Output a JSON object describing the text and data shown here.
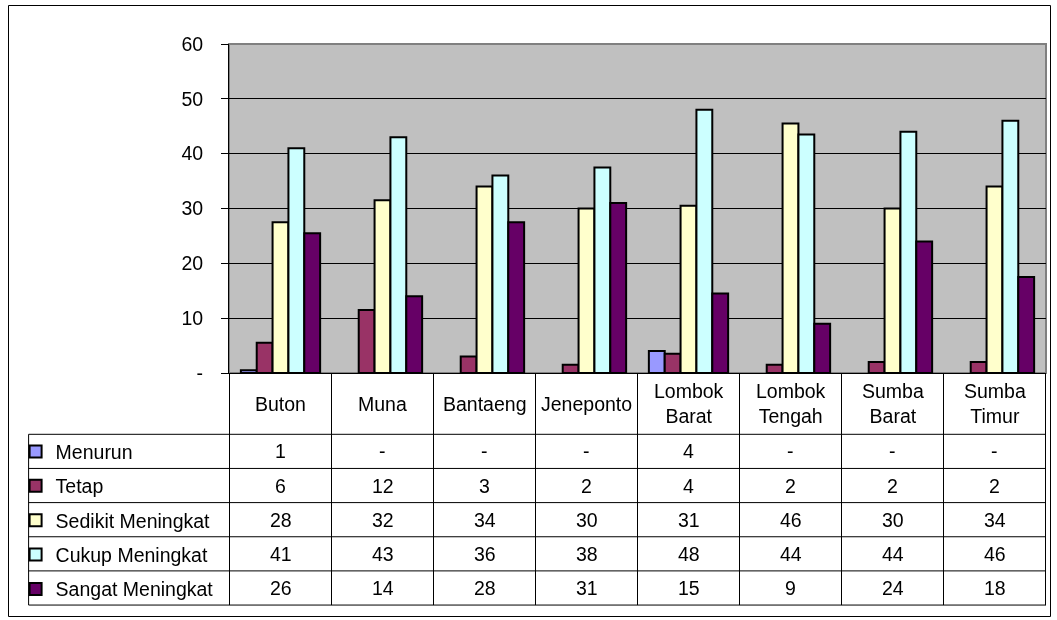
{
  "chart_data": {
    "type": "bar",
    "categories": [
      "Buton",
      "Muna",
      "Bantaeng",
      "Jeneponto",
      "Lombok Barat",
      "Lombok Tengah",
      "Sumba Barat",
      "Sumba Timur"
    ],
    "series": [
      {
        "name": "Menurun",
        "color": "#9999ff",
        "values": [
          0.5,
          0,
          0,
          0,
          4,
          0,
          0,
          0
        ],
        "value_labels": [
          "1",
          "-",
          "-",
          "-",
          "4",
          "-",
          "-",
          "-"
        ]
      },
      {
        "name": "Tetap",
        "color": "#993366",
        "values": [
          5.5,
          11.5,
          3,
          1.5,
          3.5,
          1.5,
          2,
          2
        ],
        "value_labels": [
          "6",
          "12",
          "3",
          "2",
          "4",
          "2",
          "2",
          "2"
        ]
      },
      {
        "name": "Sedikit Meningkat",
        "color": "#ffffcc",
        "values": [
          27.5,
          31.5,
          34,
          30,
          30.5,
          45.5,
          30,
          34
        ],
        "value_labels": [
          "28",
          "32",
          "34",
          "30",
          "31",
          "46",
          "30",
          "34"
        ]
      },
      {
        "name": "Cukup Meningkat",
        "color": "#ccffff",
        "values": [
          41,
          43,
          36,
          37.5,
          48,
          43.5,
          44,
          46
        ],
        "value_labels": [
          "41",
          "43",
          "36",
          "38",
          "48",
          "44",
          "44",
          "46"
        ]
      },
      {
        "name": "Sangat Meningkat",
        "color": "#660066",
        "values": [
          25.5,
          14,
          27.5,
          31,
          14.5,
          9,
          24,
          17.5
        ],
        "value_labels": [
          "26",
          "14",
          "28",
          "31",
          "15",
          "9",
          "24",
          "18"
        ]
      }
    ],
    "ylim": [
      0,
      60
    ],
    "yticks": [
      {
        "value": 0,
        "label": "-"
      },
      10,
      20,
      30,
      40,
      50,
      60
    ],
    "grid": "y",
    "legend": "bottom left"
  }
}
